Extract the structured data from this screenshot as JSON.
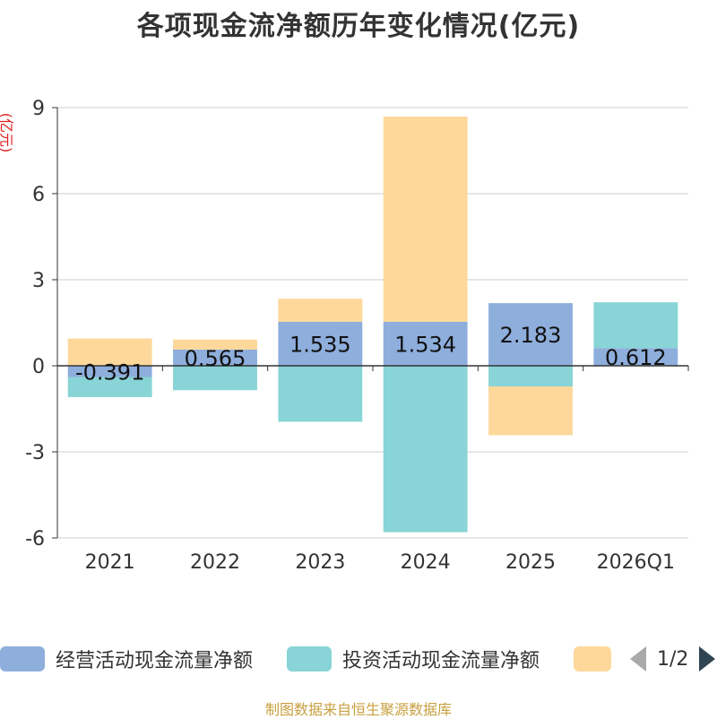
{
  "title": "各项现金流净额历年变化情况(亿元)",
  "unit_label": "(亿元)",
  "source_text": "制图数据来自恒生聚源数据库",
  "legend": {
    "items": [
      {
        "label": "经营活动现金流量净额",
        "color": "#8eaedc"
      },
      {
        "label": "投资活动现金流量净额",
        "color": "#88d4d6"
      },
      {
        "label": "",
        "color": "#fdd89a"
      }
    ],
    "page_indicator": "1/2"
  },
  "chart_data": {
    "type": "bar",
    "stacked": true,
    "categories": [
      "2021",
      "2022",
      "2023",
      "2024",
      "2025",
      "2026Q1"
    ],
    "ylim": [
      -6,
      9
    ],
    "yticks": [
      -6,
      -3,
      0,
      3,
      6,
      9
    ],
    "grid": true,
    "series": [
      {
        "name": "经营活动现金流量净额",
        "color": "#8eaedc",
        "values": [
          -0.391,
          0.565,
          1.535,
          1.534,
          2.183,
          0.612
        ],
        "show_labels": true
      },
      {
        "name": "投资活动现金流量净额",
        "color": "#88d4d6",
        "values": [
          -0.7,
          -0.85,
          -1.95,
          -5.8,
          -0.72,
          1.6
        ],
        "show_labels": false
      },
      {
        "name": "",
        "color": "#fdd89a",
        "values": [
          0.95,
          0.35,
          0.8,
          7.15,
          -1.7,
          0
        ],
        "show_labels": false
      }
    ]
  }
}
